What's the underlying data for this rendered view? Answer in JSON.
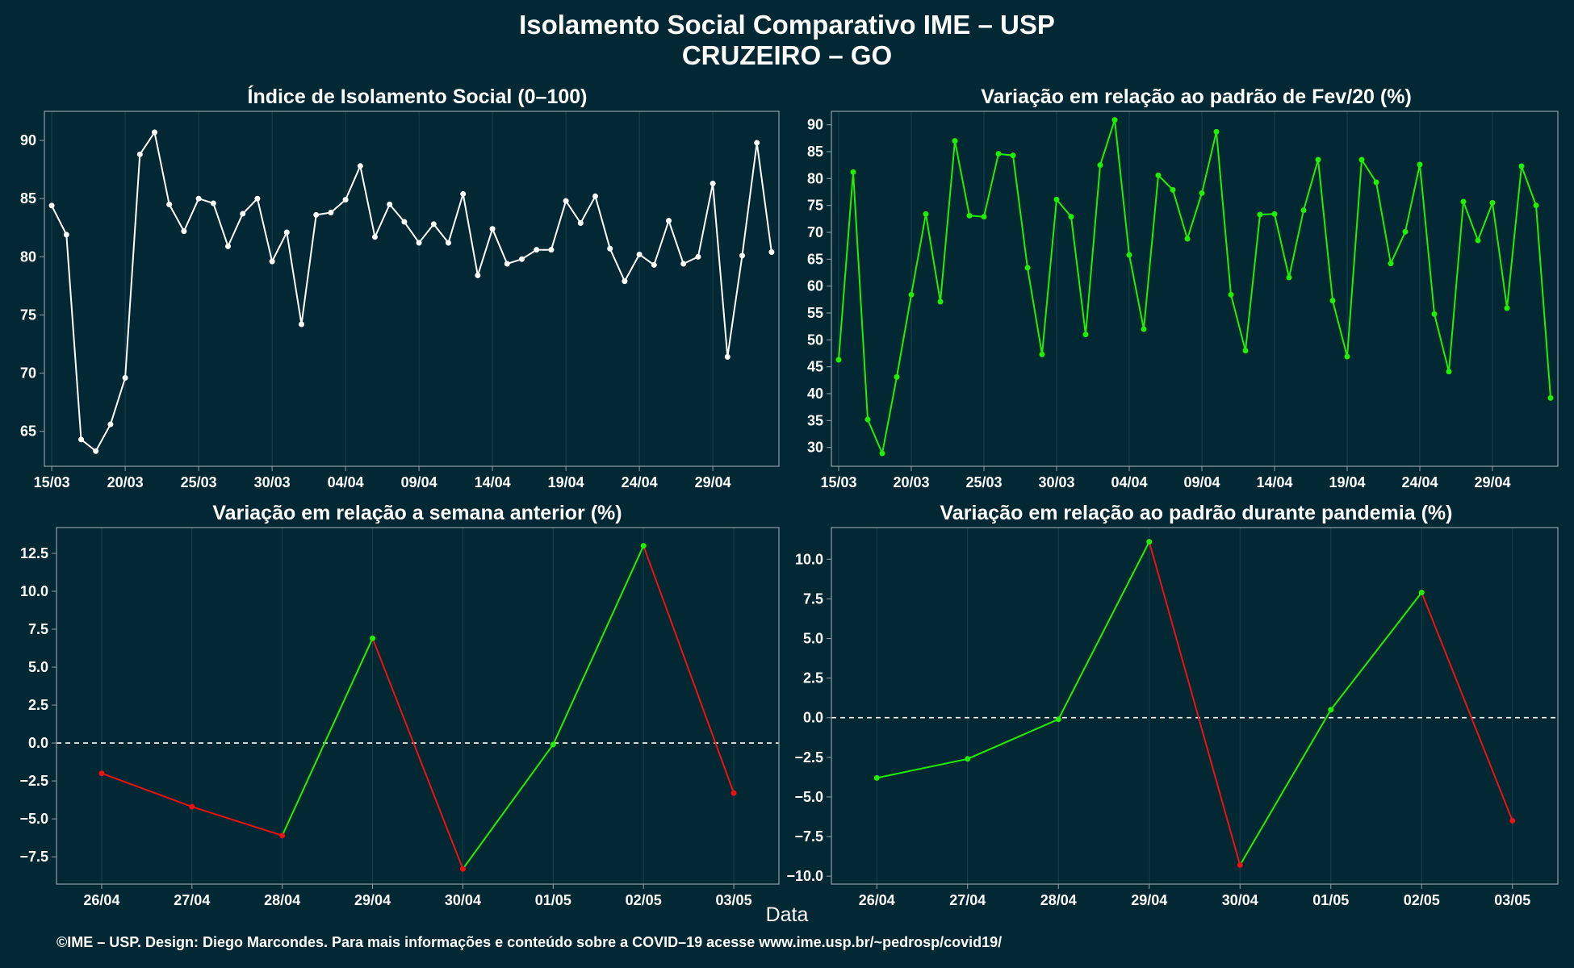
{
  "title_line1": "Isolamento Social Comparativo IME – USP",
  "title_line2": "CRUZEIRO – GO",
  "xlabel": "Data",
  "footer": "©IME – USP. Design: Diego Marcondes. Para mais informações e conteúdo sobre a COVID–19 acesse www.ime.usp.br/~pedrosp/covid19/",
  "colors": {
    "background": "#022833",
    "white": "#ffffff",
    "green": "#22ee00",
    "red": "#ee1111",
    "frame": "#8fa0a8",
    "grid": "#1b4150"
  },
  "chart_data": [
    {
      "type": "line",
      "title": "Índice de Isolamento Social (0–100)",
      "line_color": "#ffffff",
      "x_tick_labels": [
        "15/03",
        "20/03",
        "25/03",
        "30/03",
        "04/04",
        "09/04",
        "14/04",
        "19/04",
        "24/04",
        "29/04"
      ],
      "x_tick_day_index": [
        0,
        5,
        10,
        15,
        20,
        25,
        30,
        35,
        40,
        45
      ],
      "xlim": [
        -0.5,
        49.5
      ],
      "ylim": [
        62,
        92.5
      ],
      "y_ticks": [
        65,
        70,
        75,
        80,
        85,
        90
      ],
      "grid": true,
      "values": [
        84.4,
        81.9,
        64.3,
        63.3,
        65.6,
        69.6,
        88.8,
        90.7,
        84.5,
        82.2,
        85.0,
        84.6,
        80.9,
        83.7,
        85.0,
        79.6,
        82.1,
        74.2,
        83.6,
        83.8,
        84.9,
        87.8,
        81.7,
        84.5,
        83.0,
        81.2,
        82.8,
        81.2,
        85.4,
        78.4,
        82.4,
        79.4,
        79.8,
        80.6,
        80.6,
        84.8,
        82.9,
        85.2,
        80.7,
        77.9,
        80.2,
        79.3,
        83.1,
        79.4,
        80.0,
        86.3,
        71.4,
        80.1,
        89.8,
        80.4
      ]
    },
    {
      "type": "line",
      "title": "Variação em relação ao padrão de Fev/20 (%)",
      "line_color": "#22ee00",
      "x_tick_labels": [
        "15/03",
        "20/03",
        "25/03",
        "30/03",
        "04/04",
        "09/04",
        "14/04",
        "19/04",
        "24/04",
        "29/04"
      ],
      "x_tick_day_index": [
        0,
        5,
        10,
        15,
        20,
        25,
        30,
        35,
        40,
        45
      ],
      "xlim": [
        -0.5,
        49.5
      ],
      "ylim": [
        26.5,
        92.5
      ],
      "y_ticks": [
        30,
        35,
        40,
        45,
        50,
        55,
        60,
        65,
        70,
        75,
        80,
        85,
        90
      ],
      "grid": true,
      "values": [
        46.3,
        81.2,
        35.2,
        28.9,
        43.1,
        58.4,
        73.4,
        57.1,
        87.0,
        73.1,
        72.9,
        84.6,
        84.3,
        63.4,
        47.3,
        76.1,
        72.9,
        51.0,
        82.5,
        90.9,
        65.8,
        52.0,
        80.6,
        77.9,
        68.8,
        77.3,
        88.7,
        58.4,
        48.0,
        73.3,
        73.4,
        61.6,
        74.1,
        83.5,
        57.3,
        46.9,
        83.5,
        79.3,
        64.2,
        70.1,
        82.6,
        54.8,
        44.1,
        75.7,
        68.5,
        75.5,
        55.9,
        82.3,
        75.0,
        39.2
      ]
    },
    {
      "type": "line",
      "title": "Variação em relação a semana anterior (%)",
      "categories": [
        "26/04",
        "27/04",
        "28/04",
        "29/04",
        "30/04",
        "01/05",
        "02/05",
        "03/05"
      ],
      "values": [
        -2.0,
        -4.2,
        -6.1,
        6.9,
        -8.3,
        -0.1,
        13.0,
        -3.3
      ],
      "ylim": [
        -9.3,
        14.2
      ],
      "y_ticks": [
        -7.5,
        -5.0,
        -2.5,
        0.0,
        2.5,
        5.0,
        7.5,
        10.0,
        12.5
      ],
      "y_tick_labels": [
        "−7.5",
        "−5.0",
        "−2.5",
        "0.0",
        "2.5",
        "5.0",
        "7.5",
        "10.0",
        "12.5"
      ],
      "reference_line": 0,
      "segment_colors": "green when rising, red when falling",
      "grid": true
    },
    {
      "type": "line",
      "title": "Variação em relação ao padrão durante pandemia (%)",
      "categories": [
        "26/04",
        "27/04",
        "28/04",
        "29/04",
        "30/04",
        "01/05",
        "02/05",
        "03/05"
      ],
      "values": [
        -3.8,
        -2.6,
        -0.1,
        11.1,
        -9.3,
        0.5,
        7.9,
        -6.5
      ],
      "ylim": [
        -10.5,
        12.0
      ],
      "y_ticks": [
        -10.0,
        -7.5,
        -5.0,
        -2.5,
        0.0,
        2.5,
        5.0,
        7.5,
        10.0
      ],
      "y_tick_labels": [
        "−10.0",
        "−7.5",
        "−5.0",
        "−2.5",
        "0.0",
        "2.5",
        "5.0",
        "7.5",
        "10.0"
      ],
      "reference_line": 0,
      "segment_colors": "green when rising, red when falling",
      "grid": true
    }
  ]
}
